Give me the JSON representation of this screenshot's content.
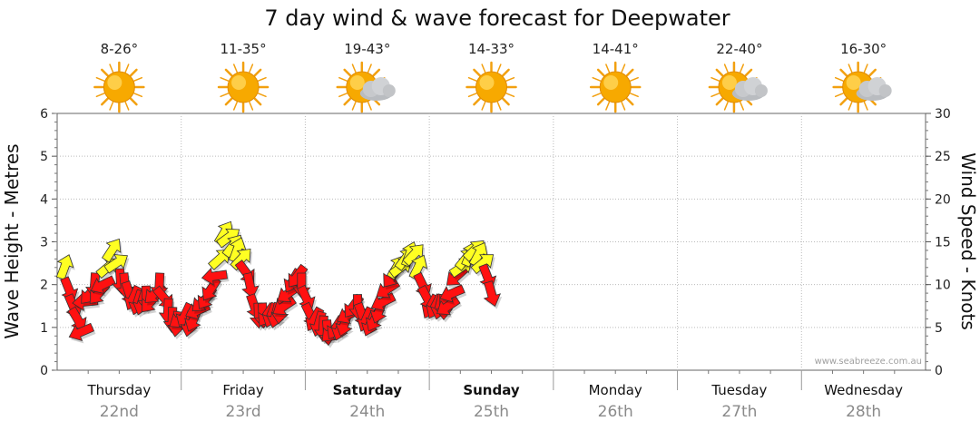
{
  "chart_data": {
    "type": "line",
    "title": "7 day wind & wave forecast for Deepwater",
    "ylabel_left": "Wave Height - Metres",
    "ylabel_right": "Wind Speed - Knots",
    "ylim_left": [
      0,
      6
    ],
    "ylim_right": [
      0,
      30
    ],
    "yticks_left": [
      "0",
      "1",
      "2",
      "3",
      "4",
      "5",
      "6"
    ],
    "yticks_right": [
      "0",
      "5",
      "10",
      "15",
      "20",
      "25",
      "30"
    ],
    "grid": true,
    "credit": "www.seabreeze.com.au",
    "days": [
      {
        "name": "Thursday",
        "date": "22nd",
        "temp": "8-26°",
        "weather": "sun-icon",
        "bold": false
      },
      {
        "name": "Friday",
        "date": "23rd",
        "temp": "11-35°",
        "weather": "sun-icon",
        "bold": false
      },
      {
        "name": "Saturday",
        "date": "24th",
        "temp": "19-43°",
        "weather": "sun-cloud-icon",
        "bold": true
      },
      {
        "name": "Sunday",
        "date": "25th",
        "temp": "14-33°",
        "weather": "sun-icon",
        "bold": true
      },
      {
        "name": "Monday",
        "date": "26th",
        "temp": "14-41°",
        "weather": "sun-icon",
        "bold": false
      },
      {
        "name": "Tuesday",
        "date": "27th",
        "temp": "22-40°",
        "weather": "sun-cloud-icon",
        "bold": false
      },
      {
        "name": "Wednesday",
        "date": "28th",
        "temp": "16-30°",
        "weather": "sun-cloud-icon",
        "bold": false
      }
    ],
    "wind_series": [
      [
        0.0,
        2.4
      ],
      [
        0.5,
        1.9
      ],
      [
        1.0,
        1.5
      ],
      [
        1.5,
        1.2
      ],
      [
        2.0,
        0.9
      ],
      [
        2.5,
        1.6
      ],
      [
        3.0,
        1.8
      ],
      [
        3.5,
        2.0
      ],
      [
        4.0,
        1.8
      ],
      [
        4.5,
        2.0
      ],
      [
        5.0,
        2.4
      ],
      [
        5.5,
        2.8
      ],
      [
        6.0,
        2.5
      ],
      [
        6.5,
        2.1
      ],
      [
        7.0,
        2.0
      ],
      [
        7.5,
        1.8
      ],
      [
        8.0,
        1.7
      ],
      [
        8.5,
        1.6
      ],
      [
        9.0,
        1.6
      ],
      [
        9.5,
        1.7
      ],
      [
        10.0,
        1.6
      ],
      [
        10.5,
        1.8
      ],
      [
        11.0,
        2.0
      ],
      [
        11.5,
        1.7
      ],
      [
        12.0,
        1.4
      ],
      [
        12.5,
        1.2
      ],
      [
        13.0,
        1.1
      ],
      [
        13.5,
        1.2
      ],
      [
        14.0,
        1.3
      ],
      [
        14.5,
        1.1
      ],
      [
        15.0,
        1.2
      ],
      [
        15.5,
        1.4
      ],
      [
        16.0,
        1.6
      ],
      [
        16.5,
        1.7
      ],
      [
        17.0,
        1.9
      ],
      [
        17.5,
        2.2
      ],
      [
        18.0,
        2.6
      ],
      [
        18.5,
        3.2
      ],
      [
        19.0,
        3.1
      ],
      [
        19.5,
        2.9
      ],
      [
        20.0,
        2.8
      ],
      [
        20.5,
        2.6
      ],
      [
        21.0,
        2.3
      ],
      [
        21.5,
        2.0
      ],
      [
        22.0,
        1.5
      ],
      [
        22.5,
        1.3
      ],
      [
        23.0,
        1.3
      ],
      [
        23.5,
        1.3
      ],
      [
        24.0,
        1.3
      ],
      [
        24.5,
        1.3
      ],
      [
        25.0,
        1.4
      ],
      [
        25.5,
        1.5
      ],
      [
        26.0,
        1.8
      ],
      [
        26.5,
        2.1
      ],
      [
        27.0,
        2.2
      ],
      [
        27.5,
        2.0
      ],
      [
        28.0,
        1.7
      ],
      [
        28.5,
        1.3
      ],
      [
        29.0,
        1.2
      ],
      [
        29.5,
        1.1
      ],
      [
        30.0,
        1.0
      ],
      [
        30.5,
        0.9
      ],
      [
        31.0,
        0.9
      ],
      [
        31.5,
        1.0
      ],
      [
        32.0,
        1.0
      ],
      [
        32.5,
        1.1
      ],
      [
        33.0,
        1.3
      ],
      [
        33.5,
        1.5
      ],
      [
        34.0,
        1.5
      ],
      [
        34.5,
        1.3
      ],
      [
        35.0,
        1.2
      ],
      [
        35.5,
        1.1
      ],
      [
        36.0,
        1.2
      ],
      [
        36.5,
        1.4
      ],
      [
        37.0,
        1.6
      ],
      [
        37.5,
        1.9
      ],
      [
        38.0,
        2.2
      ],
      [
        38.5,
        2.4
      ],
      [
        39.0,
        2.4
      ],
      [
        39.5,
        2.6
      ],
      [
        40.0,
        2.7
      ],
      [
        40.5,
        2.7
      ],
      [
        41.0,
        2.4
      ],
      [
        41.5,
        2.0
      ],
      [
        42.0,
        1.7
      ],
      [
        42.5,
        1.5
      ],
      [
        43.0,
        1.5
      ],
      [
        43.5,
        1.5
      ],
      [
        44.0,
        1.5
      ],
      [
        44.5,
        1.5
      ],
      [
        45.0,
        1.8
      ],
      [
        45.5,
        2.2
      ],
      [
        46.0,
        2.4
      ],
      [
        46.5,
        2.6
      ],
      [
        47.0,
        2.7
      ],
      [
        47.5,
        2.8
      ],
      [
        48.0,
        2.7
      ],
      [
        48.5,
        2.5
      ],
      [
        49.0,
        2.2
      ],
      [
        49.5,
        1.8
      ]
    ]
  }
}
